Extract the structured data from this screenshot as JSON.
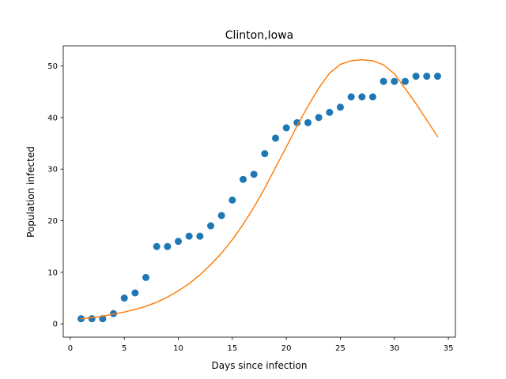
{
  "chart_data": {
    "type": "scatter",
    "title": "Clinton,Iowa",
    "xlabel": "Days since infection",
    "ylabel": "Population infected",
    "xlim": [
      -0.65,
      35.65
    ],
    "ylim": [
      -2.57,
      53.9
    ],
    "xticks": [
      0,
      5,
      10,
      15,
      20,
      25,
      30,
      35
    ],
    "yticks": [
      0,
      10,
      20,
      30,
      40,
      50
    ],
    "grid": false,
    "series": [
      {
        "kind": "scatter",
        "color": "#1f77b4",
        "x": [
          1,
          2,
          3,
          4,
          5,
          6,
          7,
          8,
          9,
          10,
          11,
          12,
          13,
          14,
          15,
          16,
          17,
          18,
          19,
          20,
          21,
          22,
          23,
          24,
          25,
          26,
          27,
          28,
          29,
          30,
          31,
          32,
          33,
          34
        ],
        "y": [
          1,
          1,
          1,
          2,
          5,
          6,
          9,
          15,
          15,
          16,
          17,
          17,
          19,
          21,
          24,
          28,
          29,
          33,
          36,
          38,
          39,
          39,
          40,
          41,
          42,
          44,
          44,
          44,
          47,
          47,
          47,
          48,
          48,
          48
        ]
      },
      {
        "kind": "line",
        "color": "#ff7f0e",
        "x": [
          1,
          2,
          3,
          4,
          5,
          6,
          7,
          8,
          9,
          10,
          11,
          12,
          13,
          14,
          15,
          16,
          17,
          18,
          19,
          20,
          21,
          22,
          23,
          24,
          25,
          26,
          27,
          28,
          29,
          30,
          31,
          32,
          33,
          34
        ],
        "y": [
          1.0,
          1.2,
          1.5,
          1.9,
          2.3,
          2.8,
          3.4,
          4.2,
          5.2,
          6.4,
          7.8,
          9.5,
          11.5,
          13.7,
          16.3,
          19.3,
          22.6,
          26.3,
          30.3,
          34.3,
          38.4,
          42.2,
          45.7,
          48.6,
          50.3,
          51.0,
          51.2,
          51.0,
          50.2,
          48.5,
          45.6,
          42.7,
          39.5,
          36.3
        ]
      }
    ]
  }
}
